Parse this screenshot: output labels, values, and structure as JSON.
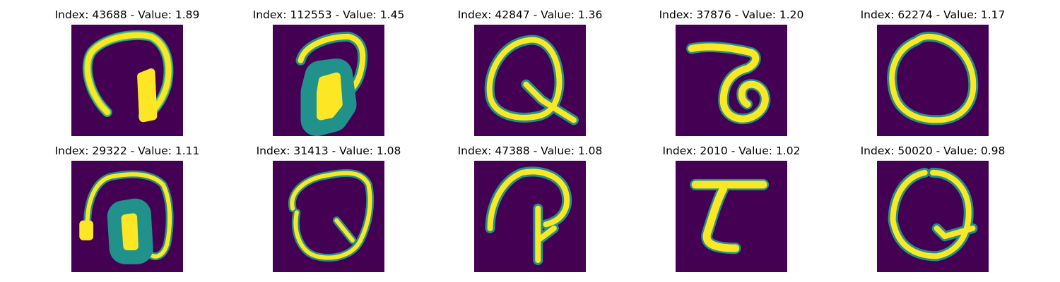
{
  "panels": [
    {
      "title": "Index: 43688 - Value: 1.89",
      "index": 43688,
      "value": 1.89
    },
    {
      "title": "Index: 112553 - Value: 1.45",
      "index": 112553,
      "value": 1.45
    },
    {
      "title": "Index: 42847 - Value: 1.36",
      "index": 42847,
      "value": 1.36
    },
    {
      "title": "Index: 37876 - Value: 1.20",
      "index": 37876,
      "value": 1.2
    },
    {
      "title": "Index: 62274 - Value: 1.17",
      "index": 62274,
      "value": 1.17
    },
    {
      "title": "Index: 29322 - Value: 1.11",
      "index": 29322,
      "value": 1.11
    },
    {
      "title": "Index: 31413 - Value: 1.08",
      "index": 31413,
      "value": 1.08
    },
    {
      "title": "Index: 47388 - Value: 1.08",
      "index": 47388,
      "value": 1.08
    },
    {
      "title": "Index: 2010 - Value: 1.02",
      "index": 2010,
      "value": 1.02
    },
    {
      "title": "Index: 50020 - Value: 0.98",
      "index": 50020,
      "value": 0.98
    }
  ],
  "colors": {
    "background": "#440154",
    "stroke_core": "#fde725",
    "stroke_mid": "#5ec962",
    "stroke_halo": "#21918c"
  }
}
